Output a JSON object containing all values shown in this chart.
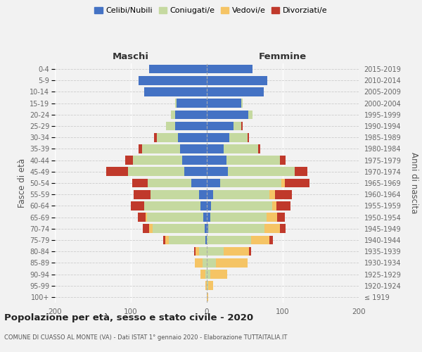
{
  "age_groups": [
    "100+",
    "95-99",
    "90-94",
    "85-89",
    "80-84",
    "75-79",
    "70-74",
    "65-69",
    "60-64",
    "55-59",
    "50-54",
    "45-49",
    "40-44",
    "35-39",
    "30-34",
    "25-29",
    "20-24",
    "15-19",
    "10-14",
    "5-9",
    "0-4"
  ],
  "birth_years": [
    "≤ 1919",
    "1920-1924",
    "1925-1929",
    "1930-1934",
    "1935-1939",
    "1940-1944",
    "1945-1949",
    "1950-1954",
    "1955-1959",
    "1960-1964",
    "1965-1969",
    "1970-1974",
    "1975-1979",
    "1980-1984",
    "1985-1989",
    "1990-1994",
    "1995-1999",
    "2000-2004",
    "2005-2009",
    "2010-2014",
    "2015-2019"
  ],
  "colors": {
    "celibi": "#4472C4",
    "coniugati": "#C5D9A0",
    "vedovi": "#F5C465",
    "divorziati": "#C0392B"
  },
  "maschi": {
    "celibi": [
      0,
      0,
      0,
      0,
      0,
      2,
      3,
      5,
      8,
      10,
      20,
      30,
      32,
      35,
      38,
      42,
      42,
      40,
      82,
      90,
      76
    ],
    "coniugati": [
      0,
      0,
      2,
      6,
      10,
      48,
      68,
      74,
      74,
      64,
      58,
      74,
      65,
      50,
      28,
      12,
      5,
      2,
      0,
      0,
      0
    ],
    "vedovi": [
      0,
      2,
      6,
      10,
      5,
      5,
      5,
      2,
      0,
      0,
      0,
      0,
      0,
      0,
      0,
      0,
      0,
      0,
      0,
      0,
      0
    ],
    "divorziati": [
      0,
      0,
      0,
      0,
      2,
      2,
      8,
      10,
      18,
      22,
      20,
      28,
      10,
      5,
      3,
      0,
      0,
      0,
      0,
      0,
      0
    ]
  },
  "femmine": {
    "celibi": [
      0,
      0,
      0,
      0,
      0,
      0,
      2,
      5,
      6,
      8,
      18,
      28,
      26,
      22,
      30,
      35,
      55,
      45,
      75,
      80,
      60
    ],
    "coniugati": [
      0,
      2,
      5,
      12,
      22,
      58,
      74,
      74,
      80,
      74,
      80,
      88,
      70,
      46,
      24,
      10,
      5,
      2,
      0,
      0,
      0
    ],
    "vedovi": [
      2,
      6,
      22,
      42,
      34,
      24,
      20,
      14,
      6,
      8,
      5,
      0,
      0,
      0,
      0,
      0,
      0,
      0,
      0,
      0,
      0
    ],
    "divorziati": [
      0,
      0,
      0,
      0,
      2,
      5,
      8,
      10,
      18,
      22,
      32,
      16,
      8,
      2,
      2,
      2,
      0,
      0,
      0,
      0,
      0
    ]
  },
  "title": "Popolazione per età, sesso e stato civile - 2020",
  "subtitle": "COMUNE DI CUASSO AL MONTE (VA) - Dati ISTAT 1° gennaio 2020 - Elaborazione TUTTAITALIA.IT",
  "xlabel_left": "Maschi",
  "xlabel_right": "Femmine",
  "ylabel_left": "Fasce di età",
  "ylabel_right": "Anni di nascita",
  "xlim": 200,
  "legend_labels": [
    "Celibi/Nubili",
    "Coniugati/e",
    "Vedovi/e",
    "Divorziati/e"
  ],
  "background_color": "#f2f2f2"
}
